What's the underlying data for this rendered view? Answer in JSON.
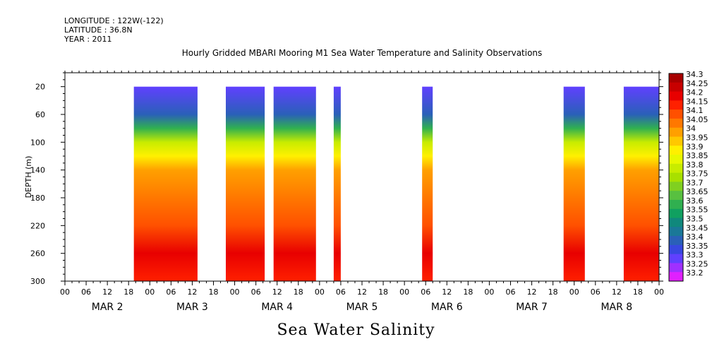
{
  "header": {
    "longitude": "LONGITUDE : 122W(-122)",
    "latitude": "LATITUDE : 36.8N",
    "year": "YEAR : 2011"
  },
  "title": "Hourly Gridded MBARI Mooring M1 Sea Water Temperature and Salinity Observations",
  "footer_title": "Sea Water Salinity",
  "chart_data": {
    "type": "heatmap",
    "title": "Hourly Gridded MBARI Mooring M1 Sea Water Temperature and Salinity Observations",
    "variable": "Sea Water Salinity",
    "ylabel": "DEPTH (m)",
    "y_reversed": true,
    "ylim": [
      0,
      300
    ],
    "yticks": [
      20,
      60,
      100,
      140,
      180,
      220,
      260,
      300
    ],
    "x_hour_ticks": [
      "00",
      "06",
      "12",
      "18",
      "00",
      "06",
      "12",
      "18",
      "00",
      "06",
      "12",
      "18",
      "00",
      "06",
      "12",
      "18",
      "00",
      "06",
      "12",
      "18",
      "00",
      "06",
      "12",
      "18",
      "00",
      "06",
      "12",
      "18",
      "00"
    ],
    "x_day_labels": [
      "MAR 2",
      "MAR 3",
      "MAR 4",
      "MAR 5",
      "MAR 6",
      "MAR 7",
      "MAR 8"
    ],
    "xlim_hours": [
      0,
      168
    ],
    "data_segments_hours": [
      [
        19.5,
        37.5
      ],
      [
        45.5,
        56.5
      ],
      [
        59,
        71
      ],
      [
        76,
        78
      ],
      [
        101,
        104
      ],
      [
        141,
        147
      ],
      [
        158,
        168
      ]
    ],
    "colorbar": {
      "levels": [
        "34.3",
        "34.25",
        "34.2",
        "34.15",
        "34.1",
        "34.05",
        "34",
        "33.95",
        "33.9",
        "33.85",
        "33.8",
        "33.75",
        "33.7",
        "33.65",
        "33.6",
        "33.55",
        "33.5",
        "33.45",
        "33.4",
        "33.35",
        "33.3",
        "33.25",
        "33.2"
      ],
      "colors": [
        "#a80000",
        "#c80000",
        "#e80000",
        "#ff2000",
        "#ff5000",
        "#ff7800",
        "#ffa000",
        "#ffc800",
        "#fff000",
        "#e8f800",
        "#c8ec00",
        "#a8e000",
        "#80d020",
        "#58c040",
        "#30b050",
        "#10a060",
        "#10887c",
        "#1a7898",
        "#2a60b8",
        "#3848e0",
        "#6040ff",
        "#a030ff",
        "#e020ff"
      ]
    },
    "profile_typical": [
      {
        "depth": 20,
        "salinity": 33.34
      },
      {
        "depth": 60,
        "salinity": 33.4
      },
      {
        "depth": 80,
        "salinity": 33.62
      },
      {
        "depth": 100,
        "salinity": 33.8
      },
      {
        "depth": 120,
        "salinity": 33.92
      },
      {
        "depth": 140,
        "salinity": 34.0
      },
      {
        "depth": 180,
        "salinity": 34.05
      },
      {
        "depth": 220,
        "salinity": 34.12
      },
      {
        "depth": 260,
        "salinity": 34.22
      },
      {
        "depth": 300,
        "salinity": 34.17
      }
    ]
  }
}
